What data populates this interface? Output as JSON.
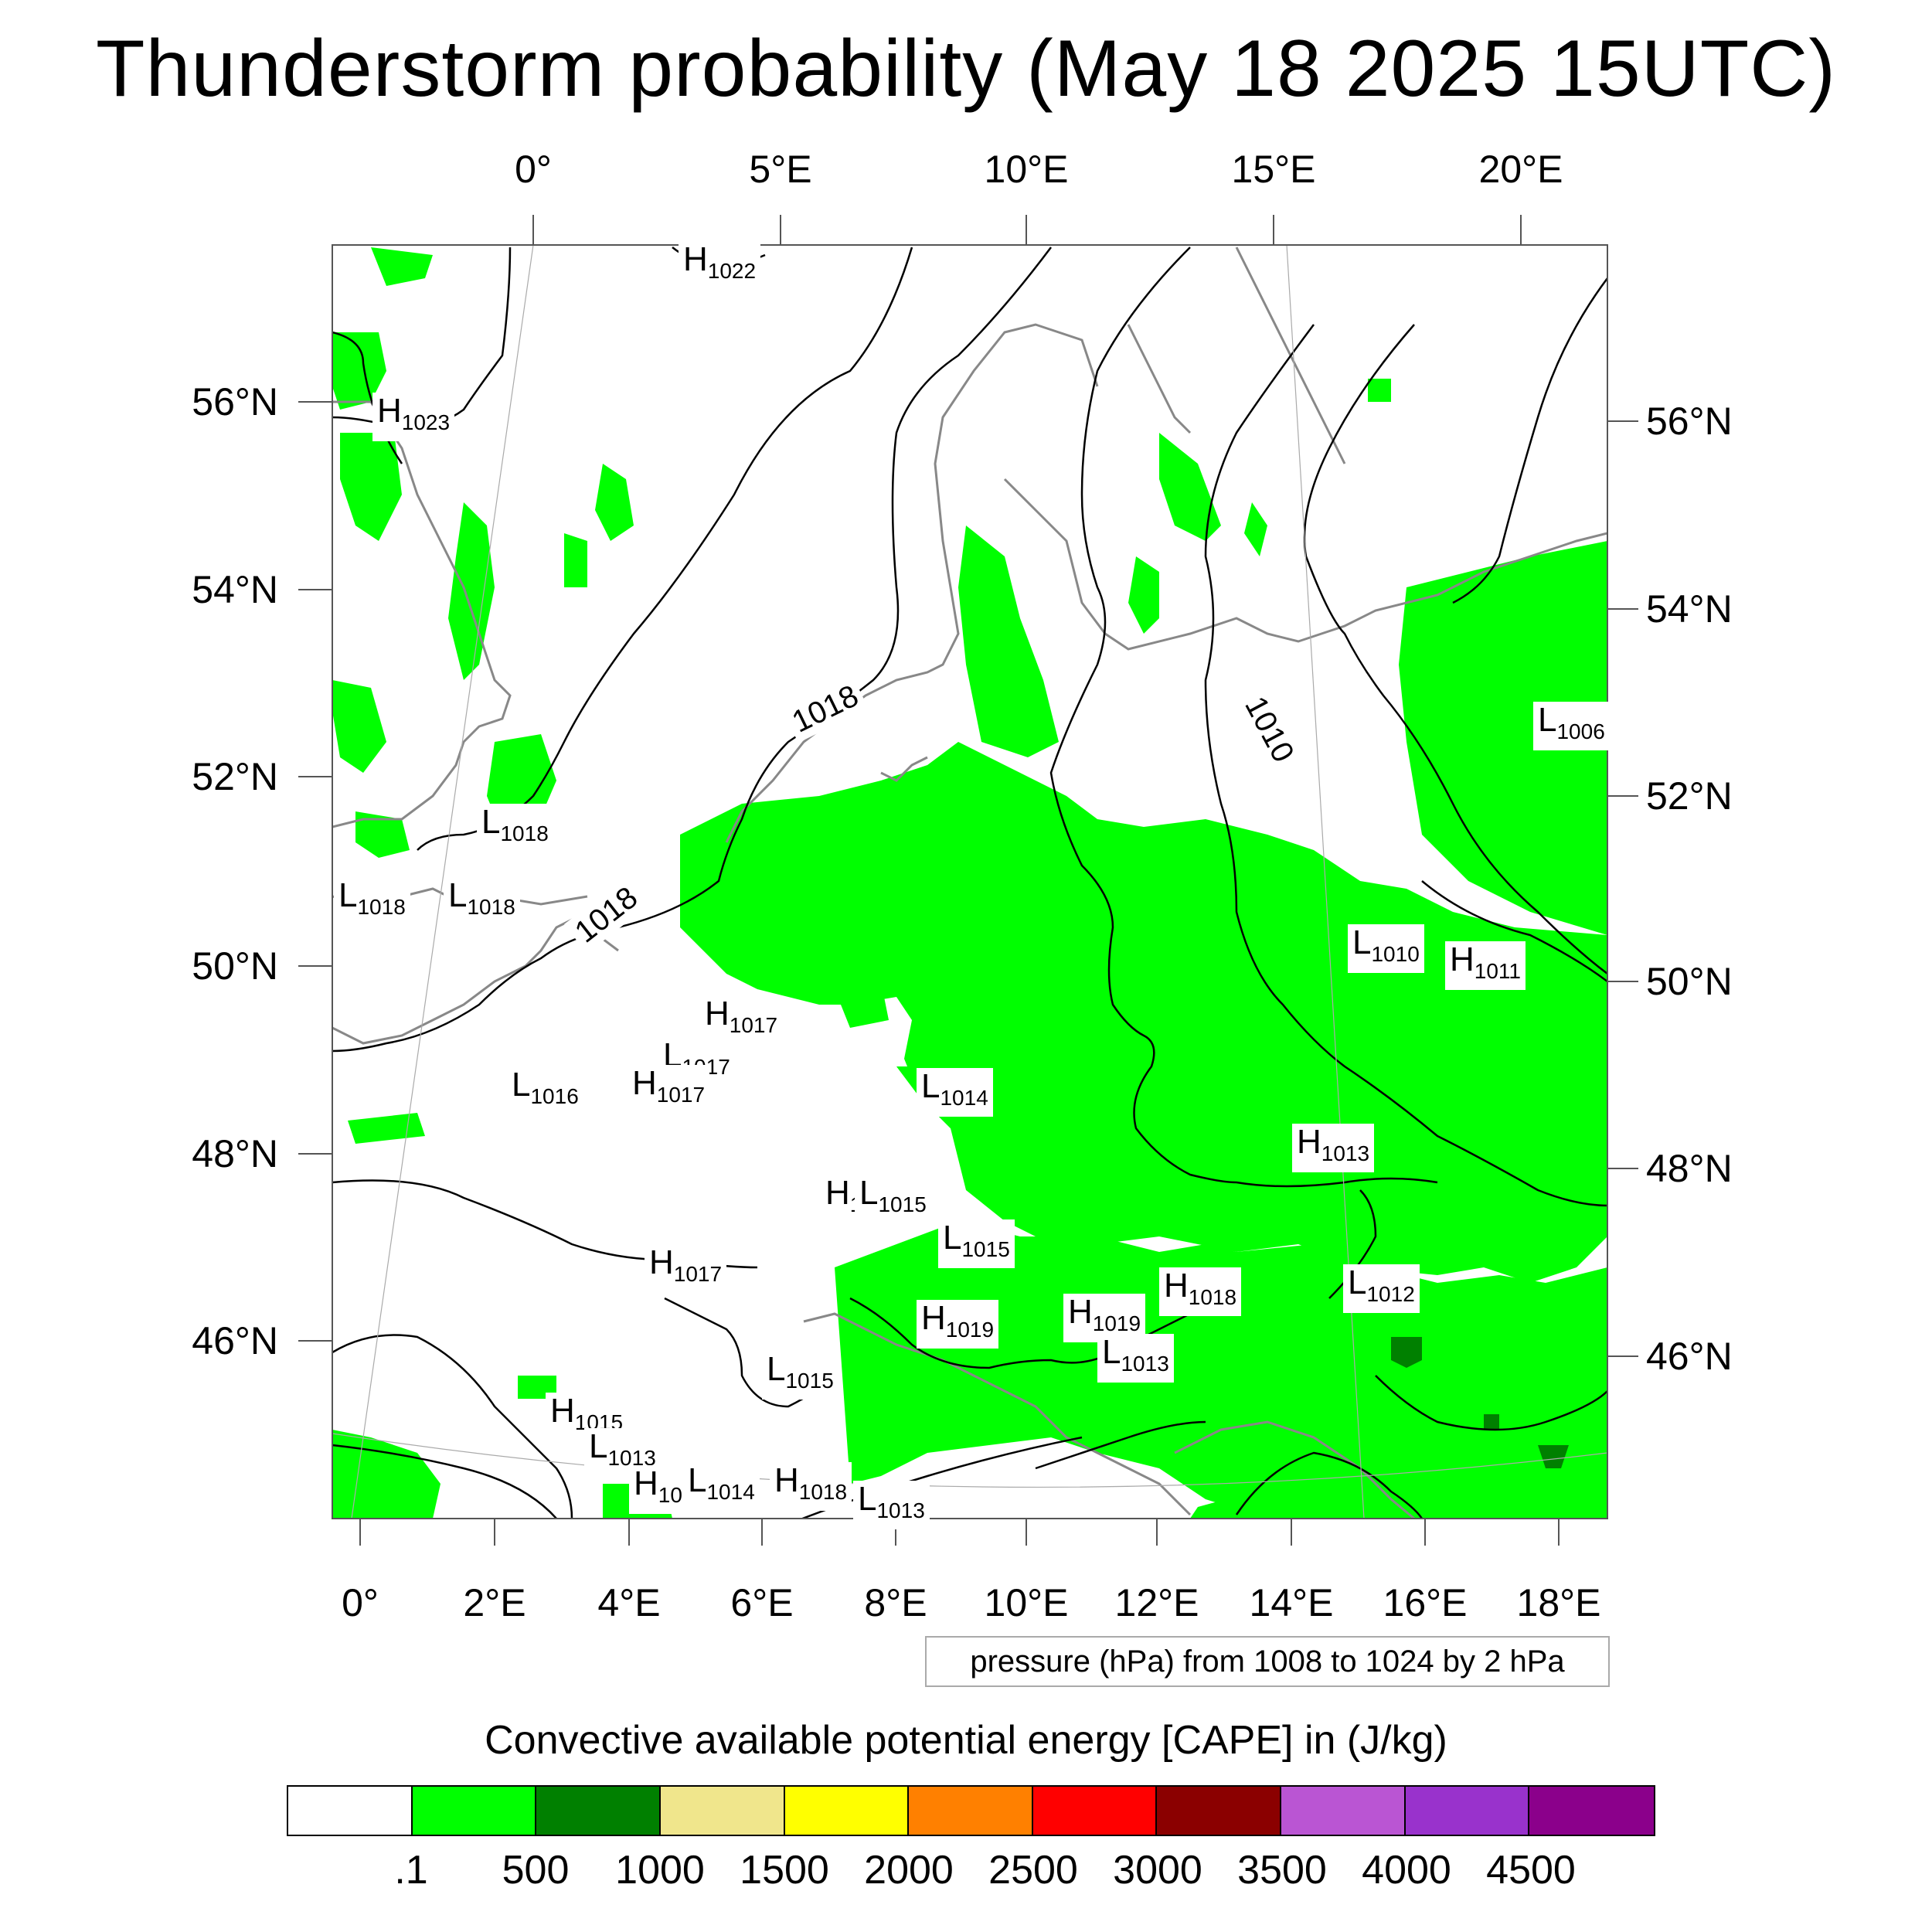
{
  "title": "Thunderstorm probability (May 18 2025 15UTC)",
  "axes": {
    "top_lon_labels": [
      "0°",
      "5°E",
      "10°E",
      "15°E",
      "20°E"
    ],
    "bottom_lon_labels": [
      "0°",
      "2°E",
      "4°E",
      "6°E",
      "8°E",
      "10°E",
      "12°E",
      "14°E",
      "16°E",
      "18°E"
    ],
    "left_lat_labels": [
      "56°N",
      "54°N",
      "52°N",
      "50°N",
      "48°N",
      "46°N"
    ],
    "right_lat_labels": [
      "56°N",
      "54°N",
      "52°N",
      "50°N",
      "48°N",
      "46°N"
    ]
  },
  "pressure_labels": [
    {
      "type": "H",
      "value": "1022"
    },
    {
      "type": "H",
      "value": "1023"
    },
    {
      "type": "L",
      "value": "1018"
    },
    {
      "type": "L",
      "value": "1018"
    },
    {
      "type": "L",
      "value": "1018"
    },
    {
      "type": "H",
      "value": "1017"
    },
    {
      "type": "L",
      "value": "1017"
    },
    {
      "type": "H",
      "value": "1017"
    },
    {
      "type": "L",
      "value": "1016"
    },
    {
      "type": "L",
      "value": "1014"
    },
    {
      "type": "H",
      "value": "1"
    },
    {
      "type": "L",
      "value": "1015"
    },
    {
      "type": "L",
      "value": "1015"
    },
    {
      "type": "H",
      "value": "1017"
    },
    {
      "type": "H",
      "value": "1019"
    },
    {
      "type": "H",
      "value": "1019"
    },
    {
      "type": "H",
      "value": "1018"
    },
    {
      "type": "L",
      "value": "1013"
    },
    {
      "type": "L",
      "value": "1015"
    },
    {
      "type": "H",
      "value": "1015"
    },
    {
      "type": "L",
      "value": "1013"
    },
    {
      "type": "H",
      "value": "10"
    },
    {
      "type": "L",
      "value": "1014"
    },
    {
      "type": "H",
      "value": "1018"
    },
    {
      "type": "L",
      "value": "1013"
    },
    {
      "type": "L",
      "value": "1006"
    },
    {
      "type": "L",
      "value": "1010"
    },
    {
      "type": "H",
      "value": "1011"
    },
    {
      "type": "H",
      "value": "1013"
    },
    {
      "type": "L",
      "value": "1012"
    }
  ],
  "isobar_labels": [
    "1018",
    "1018",
    "1010"
  ],
  "contour_info": "pressure (hPa) from 1008 to 1024 by 2 hPa",
  "legend": {
    "title": "Convective available potential energy [CAPE] in (J/kg)",
    "colors": [
      "#ffffff",
      "#00ff00",
      "#008000",
      "#f0e68c",
      "#ffff00",
      "#ff8000",
      "#ff0000",
      "#8b0000",
      "#ba55d3",
      "#9932cc",
      "#8b008b"
    ],
    "labels": [
      ".1",
      "500",
      "1000",
      "1500",
      "2000",
      "2500",
      "3000",
      "3500",
      "4000",
      "4500"
    ]
  }
}
